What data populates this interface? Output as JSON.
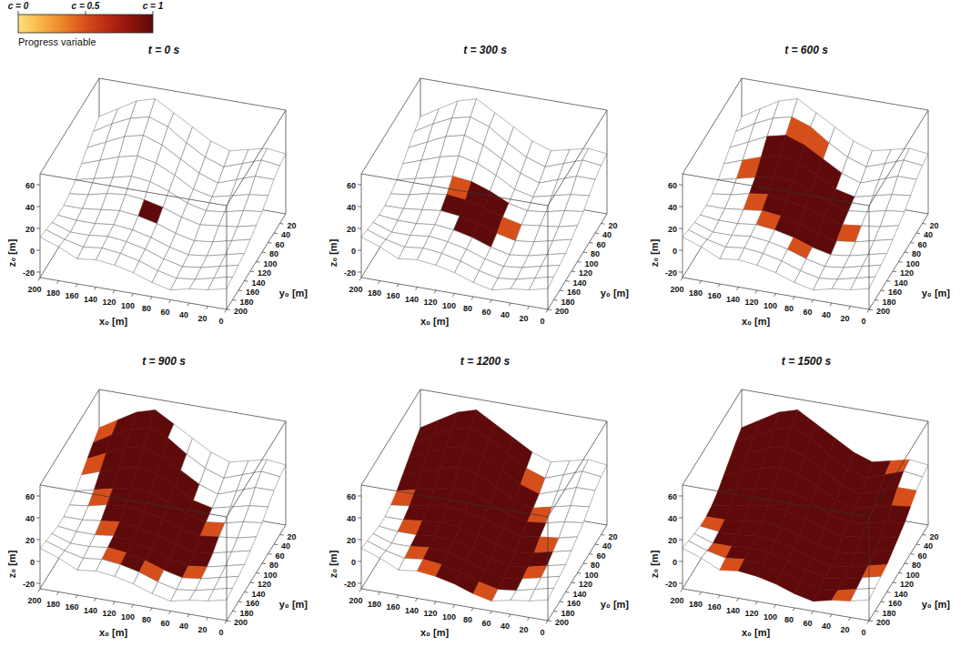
{
  "chart_data": {
    "type": "surface",
    "colorbar": {
      "label": "Progress variable",
      "range": [
        0,
        1
      ],
      "ticks": [
        {
          "value": 0,
          "label": "c = 0"
        },
        {
          "value": 0.5,
          "label": "c = 0.5"
        },
        {
          "value": 1,
          "label": "c = 1"
        }
      ]
    },
    "xlabel": "x₀ [m]",
    "ylabel": "y₀ [m]",
    "zlabel": "z₀ [m]",
    "xlim": [
      0,
      200
    ],
    "ylim": [
      0,
      200
    ],
    "zlim": [
      -25,
      70
    ],
    "xticks": [
      200,
      180,
      160,
      140,
      120,
      100,
      80,
      60,
      40,
      20,
      0
    ],
    "yticks": [
      20,
      40,
      60,
      80,
      100,
      120,
      140,
      160,
      180,
      200
    ],
    "zticks": [
      60,
      40,
      20,
      0,
      -20
    ],
    "x": [
      0,
      20,
      40,
      60,
      80,
      100,
      120,
      140,
      160,
      180,
      200
    ],
    "y": [
      0,
      20,
      40,
      60,
      80,
      100,
      120,
      140,
      160,
      180,
      200
    ],
    "z": [
      [
        30,
        32,
        28,
        24,
        30,
        40,
        50,
        60,
        55,
        45,
        35
      ],
      [
        28,
        30,
        24,
        18,
        24,
        34,
        46,
        52,
        48,
        40,
        30
      ],
      [
        24,
        24,
        18,
        12,
        18,
        28,
        38,
        44,
        40,
        32,
        24
      ],
      [
        18,
        16,
        12,
        8,
        12,
        22,
        30,
        34,
        30,
        24,
        18
      ],
      [
        12,
        10,
        6,
        4,
        8,
        16,
        22,
        24,
        20,
        16,
        12
      ],
      [
        8,
        4,
        2,
        0,
        4,
        10,
        14,
        16,
        14,
        10,
        8
      ],
      [
        4,
        0,
        -4,
        -6,
        -2,
        4,
        8,
        10,
        8,
        6,
        6
      ],
      [
        0,
        -4,
        -8,
        -10,
        -6,
        0,
        4,
        6,
        4,
        4,
        6
      ],
      [
        -2,
        -6,
        -10,
        -12,
        -8,
        -2,
        2,
        4,
        2,
        2,
        8
      ],
      [
        -4,
        -8,
        -12,
        -14,
        -10,
        -4,
        0,
        2,
        0,
        4,
        10
      ],
      [
        -6,
        -10,
        -12,
        -16,
        -12,
        -6,
        -2,
        0,
        -2,
        6,
        12
      ]
    ],
    "panels": [
      {
        "title": "t = 0 s",
        "c": [
          [
            0,
            0,
            0,
            0,
            0,
            0,
            0,
            0,
            0,
            0
          ],
          [
            0,
            0,
            0,
            0,
            0,
            0,
            0,
            0,
            0,
            0
          ],
          [
            0,
            0,
            0,
            0,
            0,
            0,
            0,
            0,
            0,
            0
          ],
          [
            0,
            0,
            0,
            0,
            0,
            0,
            0,
            0,
            0,
            0
          ],
          [
            0,
            0,
            0,
            0,
            0,
            0,
            0,
            0,
            0,
            0
          ],
          [
            0,
            0,
            0,
            0,
            0,
            1,
            0,
            0,
            0,
            0
          ],
          [
            0,
            0,
            0,
            0,
            0,
            0,
            0,
            0,
            0,
            0
          ],
          [
            0,
            0,
            0,
            0,
            0,
            0,
            0,
            0,
            0,
            0
          ],
          [
            0,
            0,
            0,
            0,
            0,
            0,
            0,
            0,
            0,
            0
          ],
          [
            0,
            0,
            0,
            0,
            0,
            0,
            0,
            0,
            0,
            0
          ]
        ]
      },
      {
        "title": "t = 300 s",
        "c": [
          [
            0,
            0,
            0,
            0,
            0,
            0,
            0,
            0,
            0,
            0
          ],
          [
            0,
            0,
            0,
            0,
            0,
            0,
            0,
            0,
            0,
            0
          ],
          [
            0,
            0,
            0,
            0,
            0,
            0,
            0,
            0,
            0,
            0
          ],
          [
            0,
            0,
            0,
            0,
            0,
            0,
            0,
            0,
            0,
            0
          ],
          [
            0,
            0,
            0,
            0,
            1,
            1,
            0.5,
            0,
            0,
            0
          ],
          [
            0,
            0,
            0,
            0.5,
            1,
            1,
            1,
            0,
            0,
            0
          ],
          [
            0,
            0,
            0,
            0,
            1,
            1,
            0,
            0,
            0,
            0
          ],
          [
            0,
            0,
            0,
            0,
            0,
            0,
            0,
            0,
            0,
            0
          ],
          [
            0,
            0,
            0,
            0,
            0,
            0,
            0,
            0,
            0,
            0
          ],
          [
            0,
            0,
            0,
            0,
            0,
            0,
            0,
            0,
            0,
            0
          ]
        ]
      },
      {
        "title": "t = 600 s",
        "c": [
          [
            0,
            0,
            0,
            0,
            0,
            0,
            0,
            0,
            0,
            0
          ],
          [
            0,
            0,
            0,
            0,
            0,
            0.5,
            0.5,
            0,
            0,
            0
          ],
          [
            0,
            0,
            0,
            0,
            1,
            1,
            1,
            1,
            0,
            0
          ],
          [
            0,
            0,
            0,
            1,
            1,
            1,
            1,
            1,
            0.5,
            0
          ],
          [
            0,
            0,
            0,
            1,
            1,
            1,
            1,
            1,
            0,
            0
          ],
          [
            0,
            0,
            0.5,
            1,
            1,
            1,
            1,
            0.5,
            0,
            0
          ],
          [
            0,
            0,
            0,
            1,
            1,
            1,
            0.5,
            0,
            0,
            0
          ],
          [
            0,
            0,
            0,
            0,
            0.5,
            0,
            0,
            0,
            0,
            0
          ],
          [
            0,
            0,
            0,
            0,
            0,
            0,
            0,
            0,
            0,
            0
          ],
          [
            0,
            0,
            0,
            0,
            0,
            0,
            0,
            0,
            0,
            0
          ]
        ]
      },
      {
        "title": "t = 900 s",
        "c": [
          [
            0,
            0,
            0,
            0,
            0,
            0,
            1,
            1,
            1,
            0.5
          ],
          [
            0,
            0,
            0,
            0,
            0,
            1,
            1,
            1,
            1,
            1
          ],
          [
            0,
            0,
            0,
            0,
            1,
            1,
            1,
            1,
            1,
            0.5
          ],
          [
            0,
            0,
            0,
            1,
            1,
            1,
            1,
            1,
            1,
            0
          ],
          [
            0,
            0,
            0.5,
            1,
            1,
            1,
            1,
            1,
            0.5,
            0
          ],
          [
            0,
            0,
            1,
            1,
            1,
            1,
            1,
            1,
            0,
            0
          ],
          [
            0,
            0,
            1,
            1,
            1,
            1,
            1,
            0.5,
            0,
            0
          ],
          [
            0,
            0,
            0.5,
            1,
            1,
            1,
            1,
            0,
            0,
            0
          ],
          [
            0,
            0,
            0,
            0,
            0.5,
            1,
            0.5,
            0,
            0,
            0
          ],
          [
            0,
            0,
            0,
            0,
            0,
            0,
            0,
            0,
            0,
            0
          ]
        ]
      },
      {
        "title": "t = 1200 s",
        "c": [
          [
            0,
            0,
            0,
            0,
            1,
            1,
            1,
            1,
            1,
            1
          ],
          [
            0,
            0,
            0,
            0.5,
            1,
            1,
            1,
            1,
            1,
            1
          ],
          [
            0,
            0,
            0,
            1,
            1,
            1,
            1,
            1,
            1,
            1
          ],
          [
            0,
            0,
            0.5,
            1,
            1,
            1,
            1,
            1,
            1,
            1
          ],
          [
            0,
            0,
            1,
            1,
            1,
            1,
            1,
            1,
            1,
            0.5
          ],
          [
            0,
            0.5,
            1,
            1,
            1,
            1,
            1,
            1,
            1,
            0
          ],
          [
            0,
            1,
            1,
            1,
            1,
            1,
            1,
            1,
            0.5,
            0
          ],
          [
            0,
            0.5,
            1,
            1,
            1,
            1,
            1,
            1,
            0,
            0
          ],
          [
            0,
            0,
            1,
            1,
            1,
            1,
            1,
            0.5,
            0,
            0
          ],
          [
            0,
            0,
            0,
            0.5,
            1,
            1,
            0.5,
            0,
            0,
            0
          ]
        ]
      },
      {
        "title": "t = 1500 s",
        "c": [
          [
            0,
            0.5,
            1,
            1,
            1,
            1,
            1,
            1,
            1,
            1
          ],
          [
            0,
            1,
            1,
            1,
            1,
            1,
            1,
            1,
            1,
            1
          ],
          [
            0.5,
            1,
            1,
            1,
            1,
            1,
            1,
            1,
            1,
            1
          ],
          [
            1,
            1,
            1,
            1,
            1,
            1,
            1,
            1,
            1,
            1
          ],
          [
            1,
            1,
            1,
            1,
            1,
            1,
            1,
            1,
            1,
            1
          ],
          [
            1,
            1,
            1,
            1,
            1,
            1,
            1,
            1,
            1,
            1
          ],
          [
            1,
            1,
            1,
            1,
            1,
            1,
            1,
            1,
            1,
            0.5
          ],
          [
            0.5,
            1,
            1,
            1,
            1,
            1,
            1,
            1,
            1,
            0
          ],
          [
            0,
            1,
            1,
            1,
            1,
            1,
            1,
            1,
            0.5,
            0
          ],
          [
            0,
            0.5,
            1,
            1,
            1,
            1,
            1,
            0.5,
            0,
            0
          ]
        ]
      }
    ]
  }
}
